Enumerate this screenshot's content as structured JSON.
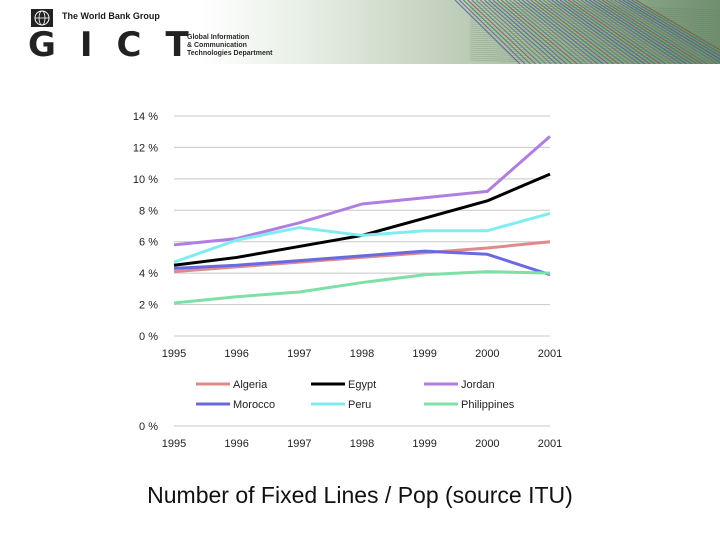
{
  "header": {
    "brand": "The World Bank Group",
    "logo_text": "GICT",
    "dept_lines": [
      "Global Information",
      "& Communication",
      "Technologies Department"
    ]
  },
  "caption": "Number of Fixed Lines / Pop (source ITU)",
  "chart_data": {
    "type": "line",
    "title": "",
    "xlabel": "",
    "ylabel": "",
    "x": [
      1995,
      1996,
      1997,
      1998,
      1999,
      2000,
      2001
    ],
    "x_tick_labels": [
      "1995",
      "1996",
      "1997",
      "1998",
      "1999",
      "2000",
      "2001"
    ],
    "y_tick_labels": [
      "0 %",
      "2 %",
      "4 %",
      "6 %",
      "8 %",
      "10 %",
      "12 %",
      "14 %"
    ],
    "ylim": [
      0,
      14
    ],
    "grid": true,
    "legend_position": "bottom",
    "series": [
      {
        "name": "Algeria",
        "color": "#e08a8a",
        "values": [
          4.1,
          4.4,
          4.7,
          5.0,
          5.3,
          5.6,
          6.0
        ]
      },
      {
        "name": "Egypt",
        "color": "#000000",
        "values": [
          4.5,
          5.0,
          5.7,
          6.4,
          7.5,
          8.6,
          10.3
        ]
      },
      {
        "name": "Jordan",
        "color": "#b07ee0",
        "values": [
          5.8,
          6.2,
          7.2,
          8.4,
          8.8,
          9.2,
          12.7
        ]
      },
      {
        "name": "Morocco",
        "color": "#6a6ae0",
        "values": [
          4.3,
          4.5,
          4.8,
          5.1,
          5.4,
          5.2,
          3.9
        ]
      },
      {
        "name": "Peru",
        "color": "#80ecf2",
        "values": [
          4.7,
          6.1,
          6.9,
          6.4,
          6.7,
          6.7,
          7.8
        ]
      },
      {
        "name": "Philippines",
        "color": "#7ee0a6",
        "values": [
          2.1,
          2.5,
          2.8,
          3.4,
          3.9,
          4.1,
          4.0
        ]
      }
    ],
    "secondary_axis": {
      "y_tick_labels": [
        "0 %"
      ],
      "x_tick_labels": [
        "1995",
        "1996",
        "1997",
        "1998",
        "1999",
        "2000",
        "2001"
      ]
    }
  }
}
